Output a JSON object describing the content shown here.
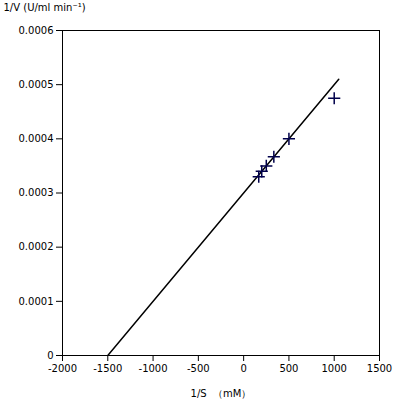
{
  "chart_data": {
    "type": "scatter",
    "xlabel": "1/S  （mM）",
    "ylabel": "1/V (U/ml min⁻¹)",
    "xlim": [
      -2000,
      1500
    ],
    "ylim": [
      0,
      0.0006
    ],
    "xticks": [
      -2000,
      -1500,
      -1000,
      -500,
      0,
      500,
      1000,
      1500
    ],
    "yticks": [
      0,
      0.0001,
      0.0002,
      0.0003,
      0.0004,
      0.0005,
      0.0006
    ],
    "series": [
      {
        "type": "line",
        "color": "#000000",
        "x": [
          -1500,
          1050
        ],
        "values": [
          0,
          0.00051
        ]
      },
      {
        "type": "scatter",
        "color": "#00004B",
        "marker": "+",
        "x": [
          166.67,
          200,
          250,
          333.33,
          500,
          1000
        ],
        "values": [
          0.00033,
          0.00034,
          0.00035,
          0.000367,
          0.0004,
          0.000475
        ]
      }
    ]
  }
}
